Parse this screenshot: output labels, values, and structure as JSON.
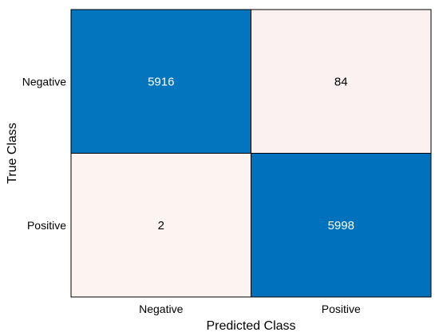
{
  "chart_data": {
    "type": "heatmap",
    "title": "",
    "xlabel": "Predicted Class",
    "ylabel": "True Class",
    "x_categories": [
      "Negative",
      "Positive"
    ],
    "y_categories": [
      "Negative",
      "Positive"
    ],
    "values": [
      [
        5916,
        84
      ],
      [
        2,
        5998
      ]
    ],
    "colors": {
      "high": "#0072bd",
      "low": "#fdf3f1",
      "text_on_high": "#ffffff",
      "text_on_low": "#000000",
      "border": "#000000"
    }
  }
}
